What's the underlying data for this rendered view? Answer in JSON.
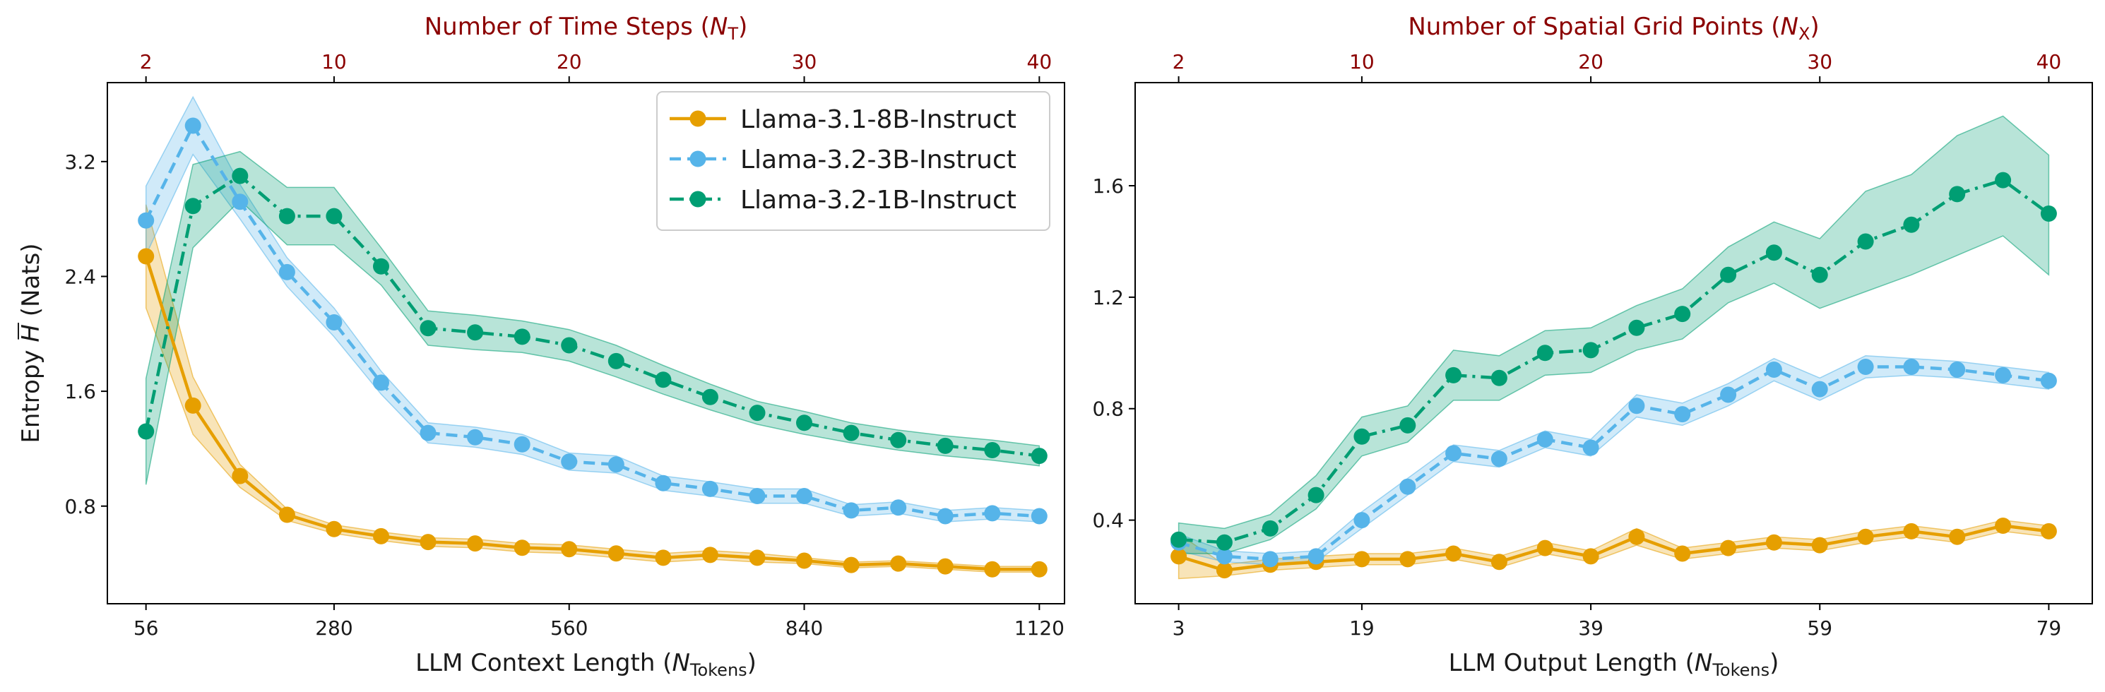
{
  "chart_data": [
    {
      "type": "line",
      "id": "left",
      "xlabel_main": "LLM Context Length (",
      "xlabel_math": "N",
      "xlabel_sub": "Tokens",
      "xlabel_close": ")",
      "ylabel_prefix": "Entropy ",
      "ylabel_math": "H",
      "ylabel_suffix": " (Nats)",
      "top_xlabel_main": "Number of Time Steps (",
      "top_xlabel_math": "N",
      "top_xlabel_sub": "T",
      "top_xlabel_close": ")",
      "xlim": [
        10,
        1150
      ],
      "ylim": [
        0.12,
        3.75
      ],
      "xticks": [
        56,
        280,
        560,
        840,
        1120
      ],
      "xtick_labels": [
        "56",
        "280",
        "560",
        "840",
        "1120"
      ],
      "yticks": [
        0.8,
        1.6,
        2.4,
        3.2
      ],
      "ytick_labels": [
        "0.8",
        "1.6",
        "2.4",
        "3.2"
      ],
      "top_ticks_at_x": [
        56,
        280,
        560,
        840,
        1120
      ],
      "top_tick_labels": [
        "2",
        "10",
        "20",
        "30",
        "40"
      ],
      "x": [
        56,
        112,
        168,
        224,
        280,
        336,
        392,
        448,
        504,
        560,
        616,
        672,
        728,
        784,
        840,
        896,
        952,
        1008,
        1064,
        1120
      ],
      "series": [
        {
          "name": "Llama-3.1-8B-Instruct",
          "color": "#e69f00",
          "linestyle": "solid",
          "values": [
            2.54,
            1.5,
            1.01,
            0.74,
            0.64,
            0.59,
            0.55,
            0.54,
            0.51,
            0.5,
            0.47,
            0.44,
            0.46,
            0.44,
            0.42,
            0.39,
            0.4,
            0.38,
            0.36,
            0.36
          ],
          "lower": [
            2.18,
            1.3,
            0.93,
            0.7,
            0.61,
            0.56,
            0.52,
            0.51,
            0.48,
            0.47,
            0.44,
            0.41,
            0.43,
            0.41,
            0.4,
            0.37,
            0.38,
            0.36,
            0.34,
            0.34
          ],
          "upper": [
            2.9,
            1.7,
            1.09,
            0.78,
            0.67,
            0.62,
            0.58,
            0.57,
            0.54,
            0.53,
            0.5,
            0.47,
            0.49,
            0.47,
            0.44,
            0.41,
            0.42,
            0.4,
            0.38,
            0.38
          ]
        },
        {
          "name": "Llama-3.2-3B-Instruct",
          "color": "#56b4e9",
          "linestyle": "dashed",
          "values": [
            2.79,
            3.45,
            2.92,
            2.43,
            2.08,
            1.66,
            1.31,
            1.28,
            1.23,
            1.11,
            1.09,
            0.96,
            0.92,
            0.87,
            0.87,
            0.77,
            0.79,
            0.73,
            0.75,
            0.73
          ],
          "lower": [
            2.55,
            3.25,
            2.8,
            2.33,
            1.98,
            1.58,
            1.24,
            1.21,
            1.16,
            1.05,
            1.03,
            0.91,
            0.87,
            0.82,
            0.82,
            0.73,
            0.75,
            0.69,
            0.71,
            0.69
          ],
          "upper": [
            3.03,
            3.65,
            3.04,
            2.53,
            2.18,
            1.74,
            1.38,
            1.35,
            1.3,
            1.17,
            1.15,
            1.01,
            0.97,
            0.92,
            0.92,
            0.81,
            0.83,
            0.77,
            0.79,
            0.77
          ]
        },
        {
          "name": "Llama-3.2-1B-Instruct",
          "color": "#009e73",
          "linestyle": "dashdot",
          "values": [
            1.32,
            2.89,
            3.1,
            2.82,
            2.82,
            2.47,
            2.04,
            2.01,
            1.98,
            1.92,
            1.81,
            1.68,
            1.56,
            1.45,
            1.38,
            1.31,
            1.26,
            1.22,
            1.19,
            1.15
          ],
          "lower": [
            0.95,
            2.6,
            2.93,
            2.62,
            2.62,
            2.34,
            1.92,
            1.89,
            1.87,
            1.81,
            1.7,
            1.58,
            1.47,
            1.37,
            1.3,
            1.24,
            1.19,
            1.15,
            1.12,
            1.08
          ],
          "upper": [
            1.69,
            3.18,
            3.27,
            3.02,
            3.02,
            2.6,
            2.16,
            2.13,
            2.09,
            2.03,
            1.92,
            1.78,
            1.65,
            1.53,
            1.46,
            1.38,
            1.33,
            1.29,
            1.26,
            1.22
          ]
        }
      ],
      "legend": "top-right"
    },
    {
      "type": "line",
      "id": "right",
      "xlabel_main": "LLM Output Length (",
      "xlabel_math": "N",
      "xlabel_sub": "Tokens",
      "xlabel_close": ")",
      "top_xlabel_main": "Number of Spatial Grid Points (",
      "top_xlabel_math": "N",
      "top_xlabel_sub": "X",
      "top_xlabel_close": ")",
      "xlim": [
        -0.8,
        82.8
      ],
      "ylim": [
        0.1,
        1.97
      ],
      "xticks": [
        3,
        19,
        39,
        59,
        79
      ],
      "xtick_labels": [
        "3",
        "19",
        "39",
        "59",
        "79"
      ],
      "yticks": [
        0.4,
        0.8,
        1.2,
        1.6
      ],
      "ytick_labels": [
        "0.4",
        "0.8",
        "1.2",
        "1.6"
      ],
      "top_ticks_at_x": [
        3,
        19,
        39,
        59,
        79
      ],
      "top_tick_labels": [
        "2",
        "10",
        "20",
        "30",
        "40"
      ],
      "x": [
        3,
        7,
        11,
        15,
        19,
        23,
        27,
        31,
        35,
        39,
        43,
        47,
        51,
        55,
        59,
        63,
        67,
        71,
        75,
        79
      ],
      "series": [
        {
          "name": "Llama-3.1-8B-Instruct",
          "color": "#e69f00",
          "linestyle": "solid",
          "values": [
            0.27,
            0.22,
            0.24,
            0.25,
            0.26,
            0.26,
            0.28,
            0.25,
            0.3,
            0.27,
            0.34,
            0.28,
            0.3,
            0.32,
            0.31,
            0.34,
            0.36,
            0.34,
            0.38,
            0.36
          ],
          "lower": [
            0.19,
            0.2,
            0.22,
            0.23,
            0.24,
            0.24,
            0.26,
            0.23,
            0.28,
            0.25,
            0.31,
            0.26,
            0.28,
            0.3,
            0.29,
            0.32,
            0.34,
            0.32,
            0.36,
            0.34
          ],
          "upper": [
            0.35,
            0.24,
            0.26,
            0.27,
            0.28,
            0.28,
            0.3,
            0.27,
            0.32,
            0.29,
            0.37,
            0.3,
            0.32,
            0.34,
            0.33,
            0.36,
            0.38,
            0.36,
            0.4,
            0.38
          ]
        },
        {
          "name": "Llama-3.2-3B-Instruct",
          "color": "#56b4e9",
          "linestyle": "dashed",
          "values": [
            0.32,
            0.27,
            0.26,
            0.27,
            0.4,
            0.52,
            0.64,
            0.62,
            0.69,
            0.66,
            0.81,
            0.78,
            0.85,
            0.94,
            0.87,
            0.95,
            0.95,
            0.94,
            0.92,
            0.9
          ],
          "lower": [
            0.29,
            0.25,
            0.24,
            0.25,
            0.37,
            0.49,
            0.61,
            0.59,
            0.66,
            0.63,
            0.77,
            0.74,
            0.81,
            0.9,
            0.83,
            0.91,
            0.92,
            0.91,
            0.89,
            0.87
          ],
          "upper": [
            0.35,
            0.29,
            0.28,
            0.29,
            0.43,
            0.55,
            0.67,
            0.65,
            0.72,
            0.69,
            0.85,
            0.82,
            0.89,
            0.98,
            0.91,
            0.99,
            0.98,
            0.97,
            0.95,
            0.93
          ]
        },
        {
          "name": "Llama-3.2-1B-Instruct",
          "color": "#009e73",
          "linestyle": "dashdot",
          "values": [
            0.33,
            0.32,
            0.37,
            0.49,
            0.7,
            0.74,
            0.92,
            0.91,
            1.0,
            1.01,
            1.09,
            1.14,
            1.28,
            1.36,
            1.28,
            1.4,
            1.46,
            1.57,
            1.62,
            1.5
          ],
          "lower": [
            0.28,
            0.28,
            0.33,
            0.44,
            0.63,
            0.68,
            0.83,
            0.83,
            0.92,
            0.93,
            1.01,
            1.05,
            1.18,
            1.25,
            1.16,
            1.22,
            1.28,
            1.35,
            1.42,
            1.28
          ],
          "upper": [
            0.39,
            0.37,
            0.42,
            0.56,
            0.77,
            0.81,
            1.01,
            0.99,
            1.08,
            1.09,
            1.17,
            1.23,
            1.38,
            1.47,
            1.41,
            1.58,
            1.64,
            1.78,
            1.85,
            1.71
          ]
        }
      ]
    }
  ]
}
